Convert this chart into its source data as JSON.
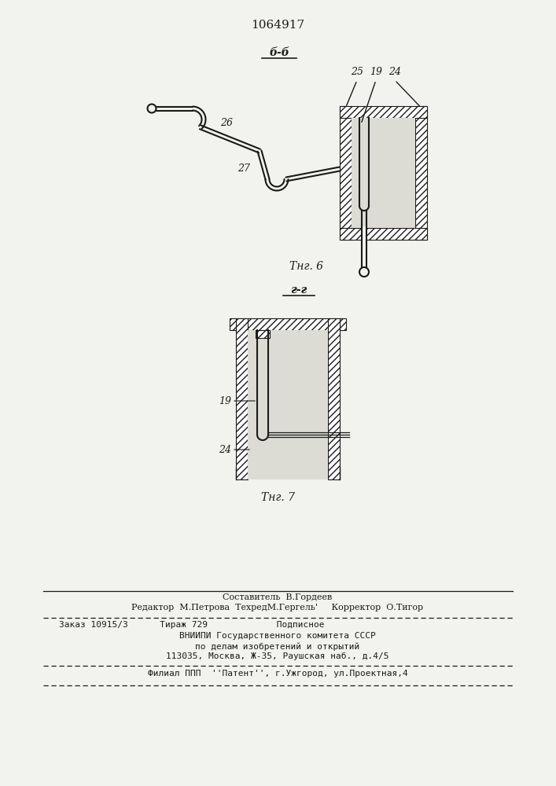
{
  "title": "1064917",
  "fig6_label": "Τнг. 6",
  "fig7_label": "Τнг. 7",
  "section_bb": "б-б",
  "section_gg": "г-г",
  "footer_line1": "Составитель  В.Гордеев",
  "footer_line2": "Редактор  М.Петрова  ТехредМ.Гергель'     Корректор  О.Тигор",
  "footer_line3": "Заказ 10915/3      Тираж 729             Подписное",
  "footer_line4": "ВНИИПИ Государственного комитета СССР",
  "footer_line5": "по делам изобретений и открытий",
  "footer_line6": "113035, Москва, Ж-35, Раушская наб., д.4/5",
  "footer_line7": "Филиал ППП  ''Патент'', г.Ужгород, ул.Проектная,4",
  "line_color": "#1a1a1a",
  "bg_color": "#f2f2ee"
}
